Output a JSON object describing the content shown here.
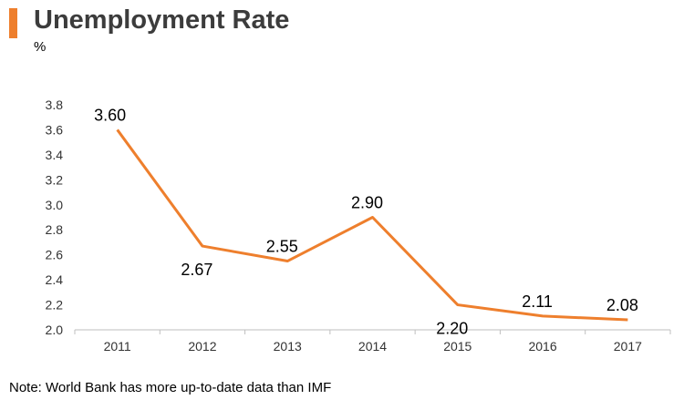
{
  "header": {
    "title": "Unemployment Rate",
    "unit": "%"
  },
  "footer": {
    "note": "Note: World Bank has more up-to-date data than IMF"
  },
  "colors": {
    "accent": "#ee7f2d",
    "line": "#ee7f2d",
    "axis": "#bfbfbf"
  },
  "chart_data": {
    "type": "line",
    "title": "Unemployment Rate",
    "ylabel": "%",
    "xlabel": "",
    "categories": [
      "2011",
      "2012",
      "2013",
      "2014",
      "2015",
      "2016",
      "2017"
    ],
    "series": [
      {
        "values": [
          3.6,
          2.67,
          2.55,
          2.9,
          2.2,
          2.11,
          2.08
        ]
      }
    ],
    "data_labels": [
      "3.60",
      "2.67",
      "2.55",
      "2.90",
      "2.20",
      "2.11",
      "2.08"
    ],
    "ylim": [
      2.0,
      3.8
    ],
    "yticks": [
      "2.0",
      "2.2",
      "2.4",
      "2.6",
      "2.8",
      "3.0",
      "3.2",
      "3.4",
      "3.6",
      "3.8"
    ],
    "grid": false,
    "legend": "none"
  }
}
